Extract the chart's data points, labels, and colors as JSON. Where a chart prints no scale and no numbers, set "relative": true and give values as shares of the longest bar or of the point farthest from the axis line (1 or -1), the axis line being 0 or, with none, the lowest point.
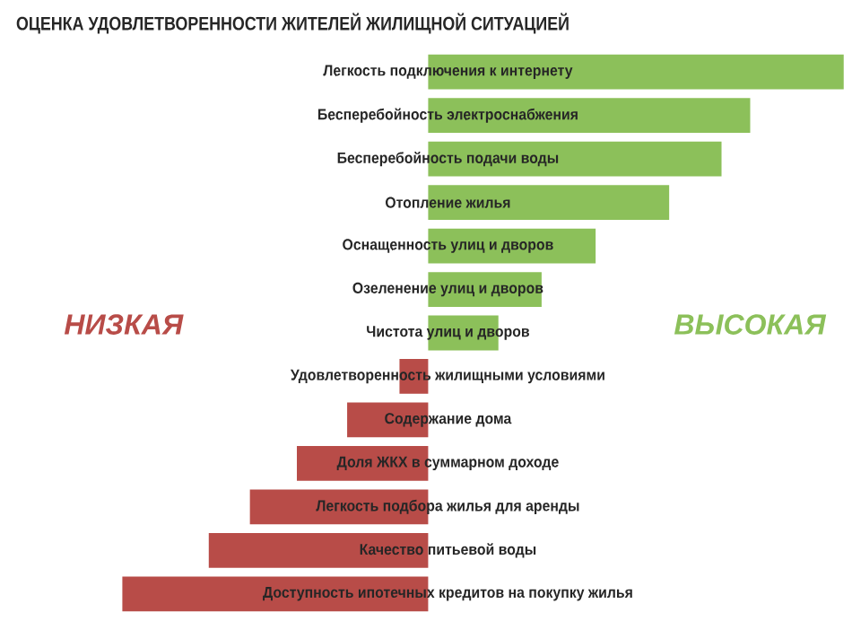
{
  "chart_data": {
    "type": "bar",
    "orientation": "horizontal",
    "relative": true,
    "title": "ОЦЕНКА УДОВЛЕТВОРЕННОСТИ ЖИТЕЛЕЙ ЖИЛИЩНОЙ СИТУАЦИЕЙ",
    "annotations": [
      "НИЗКАЯ",
      "ВЫСОКАЯ"
    ],
    "categories": [
      "Легкость подключения к интернету",
      "Бесперебойность электроснабжения",
      "Бесперебойность подачи воды",
      "Отопление жилья",
      "Оснащенность улиц и дворов",
      "Озеленение улиц и дворов",
      "Чистота улиц и дворов",
      "Удовлетворенность жилищными условиями",
      "Содержание дома",
      "Доля ЖКХ в суммарном доходе",
      "Легкость подбора жилья для аренды",
      "Качество питьевой воды",
      "Доступность ипотечных кредитов на покупку жилья"
    ],
    "values": [
      1,
      0.775,
      0.706,
      0.58,
      0.403,
      0.273,
      0.169,
      -0.069,
      -0.195,
      -0.316,
      -0.429,
      -0.528,
      -0.736
    ],
    "colors": [
      "#8cc05a",
      "#8cc05a",
      "#8cc05a",
      "#8cc05a",
      "#8cc05a",
      "#8cc05a",
      "#8cc05a",
      "#b84c48",
      "#b84c48",
      "#b84c48",
      "#b84c48",
      "#b84c48",
      "#b84c48"
    ]
  }
}
